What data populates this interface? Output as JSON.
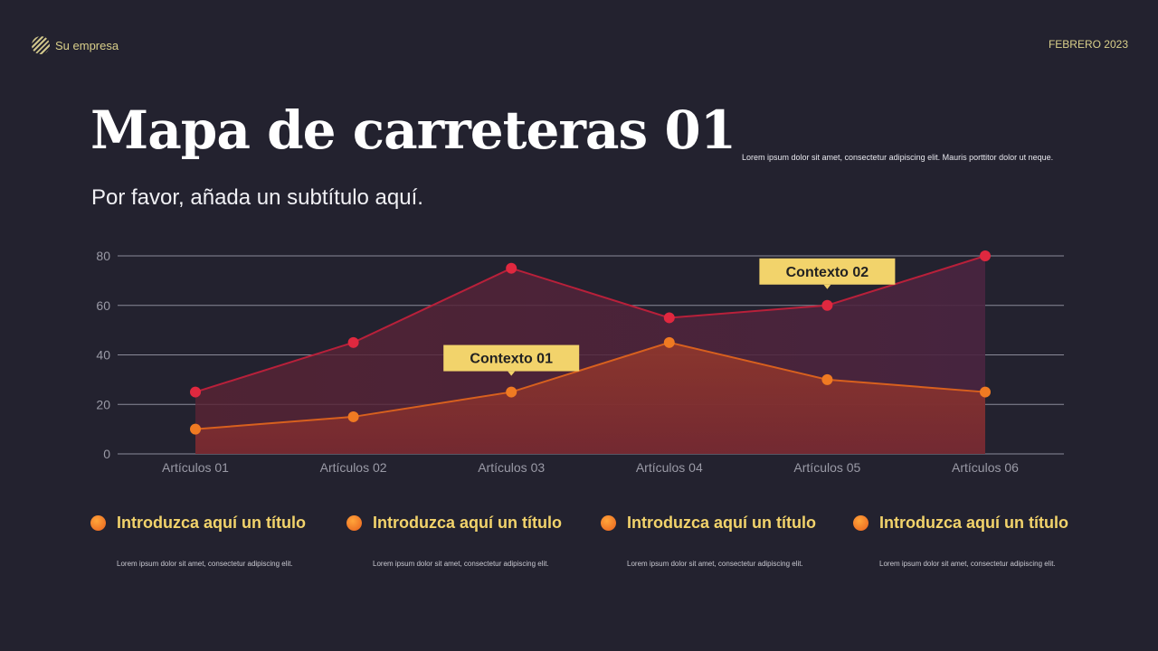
{
  "header": {
    "brand": "Su empresa",
    "date": "FEBRERO 2023",
    "logo_icon": "striped-circle-logo"
  },
  "title": "Mapa de carreteras 01",
  "subtitle": "Por favor, añada un subtítulo aquí.",
  "description": "Lorem ipsum dolor sit amet, consectetur adipiscing elit. Mauris porttitor dolor ut neque.",
  "chart_data": {
    "type": "area",
    "categories": [
      "Artículos 01",
      "Artículos 02",
      "Artículos 03",
      "Artículos 04",
      "Artículos 05",
      "Artículos 06"
    ],
    "yticks": [
      0,
      20,
      40,
      60,
      80
    ],
    "ylim": [
      0,
      80
    ],
    "grid": true,
    "series": [
      {
        "values": [
          25,
          45,
          75,
          55,
          60,
          80
        ],
        "color": "#e0283f"
      },
      {
        "values": [
          10,
          15,
          25,
          45,
          30,
          25
        ],
        "color": "#f07a22"
      }
    ],
    "annotations": [
      {
        "text": "Contexto 01",
        "category": "Artículos 03",
        "series": 1
      },
      {
        "text": "Contexto 02",
        "category": "Artículos 05",
        "series": 0
      }
    ],
    "callout_color": "#f2d36b"
  },
  "legend": [
    {
      "title": "Introduzca aquí un título",
      "text": "Lorem ipsum dolor sit amet, consectetur adipiscing elit."
    },
    {
      "title": "Introduzca aquí un título",
      "text": "Lorem ipsum dolor sit amet, consectetur adipiscing elit."
    },
    {
      "title": "Introduzca aquí un título",
      "text": "Lorem ipsum dolor sit amet, consectetur adipiscing elit."
    },
    {
      "title": "Introduzca aquí un título",
      "text": "Lorem ipsum dolor sit amet, consectetur adipiscing elit."
    }
  ]
}
